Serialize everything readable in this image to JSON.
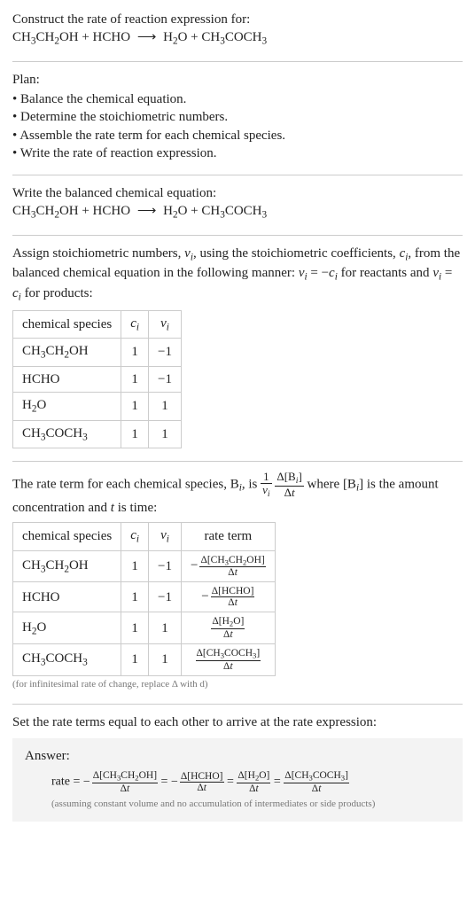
{
  "header": {
    "prompt": "Construct the rate of reaction expression for:",
    "equation": "CH_3CH_2OH + HCHO ⟶ H_2O + CH_3COCH_3"
  },
  "plan": {
    "title": "Plan:",
    "items": [
      "Balance the chemical equation.",
      "Determine the stoichiometric numbers.",
      "Assemble the rate term for each chemical species.",
      "Write the rate of reaction expression."
    ]
  },
  "balanced": {
    "intro": "Write the balanced chemical equation:",
    "equation": "CH_3CH_2OH + HCHO ⟶ H_2O + CH_3COCH_3"
  },
  "stoich": {
    "intro": "Assign stoichiometric numbers, ν_i, using the stoichiometric coefficients, c_i, from the balanced chemical equation in the following manner: ν_i = −c_i for reactants and ν_i = c_i for products:",
    "columns": [
      "chemical species",
      "c_i",
      "ν_i"
    ],
    "rows": [
      [
        "CH_3CH_2OH",
        "1",
        "−1"
      ],
      [
        "HCHO",
        "1",
        "−1"
      ],
      [
        "H_2O",
        "1",
        "1"
      ],
      [
        "CH_3COCH_3",
        "1",
        "1"
      ]
    ]
  },
  "rate_term": {
    "intro_pre": "The rate term for each chemical species, B_i, is ",
    "intro_post": " where [B_i] is the amount concentration and t is time:",
    "columns": [
      "chemical species",
      "c_i",
      "ν_i",
      "rate term"
    ],
    "rows": [
      {
        "sp": "CH_3CH_2OH",
        "c": "1",
        "v": "−1",
        "neg": true,
        "num": "Δ[CH_3CH_2OH]",
        "den": "Δt"
      },
      {
        "sp": "HCHO",
        "c": "1",
        "v": "−1",
        "neg": true,
        "num": "Δ[HCHO]",
        "den": "Δt"
      },
      {
        "sp": "H_2O",
        "c": "1",
        "v": "1",
        "neg": false,
        "num": "Δ[H_2O]",
        "den": "Δt"
      },
      {
        "sp": "CH_3COCH_3",
        "c": "1",
        "v": "1",
        "neg": false,
        "num": "Δ[CH_3COCH_3]",
        "den": "Δt"
      }
    ],
    "note": "(for infinitesimal rate of change, replace Δ with d)"
  },
  "final_intro": "Set the rate terms equal to each other to arrive at the rate expression:",
  "answer": {
    "title": "Answer:",
    "rate_label": "rate = ",
    "terms": [
      {
        "neg": true,
        "num": "Δ[CH_3CH_2OH]",
        "den": "Δt"
      },
      {
        "neg": true,
        "num": "Δ[HCHO]",
        "den": "Δt"
      },
      {
        "neg": false,
        "num": "Δ[H_2O]",
        "den": "Δt"
      },
      {
        "neg": false,
        "num": "Δ[CH_3COCH_3]",
        "den": "Δt"
      }
    ],
    "note": "(assuming constant volume and no accumulation of intermediates or side products)"
  }
}
